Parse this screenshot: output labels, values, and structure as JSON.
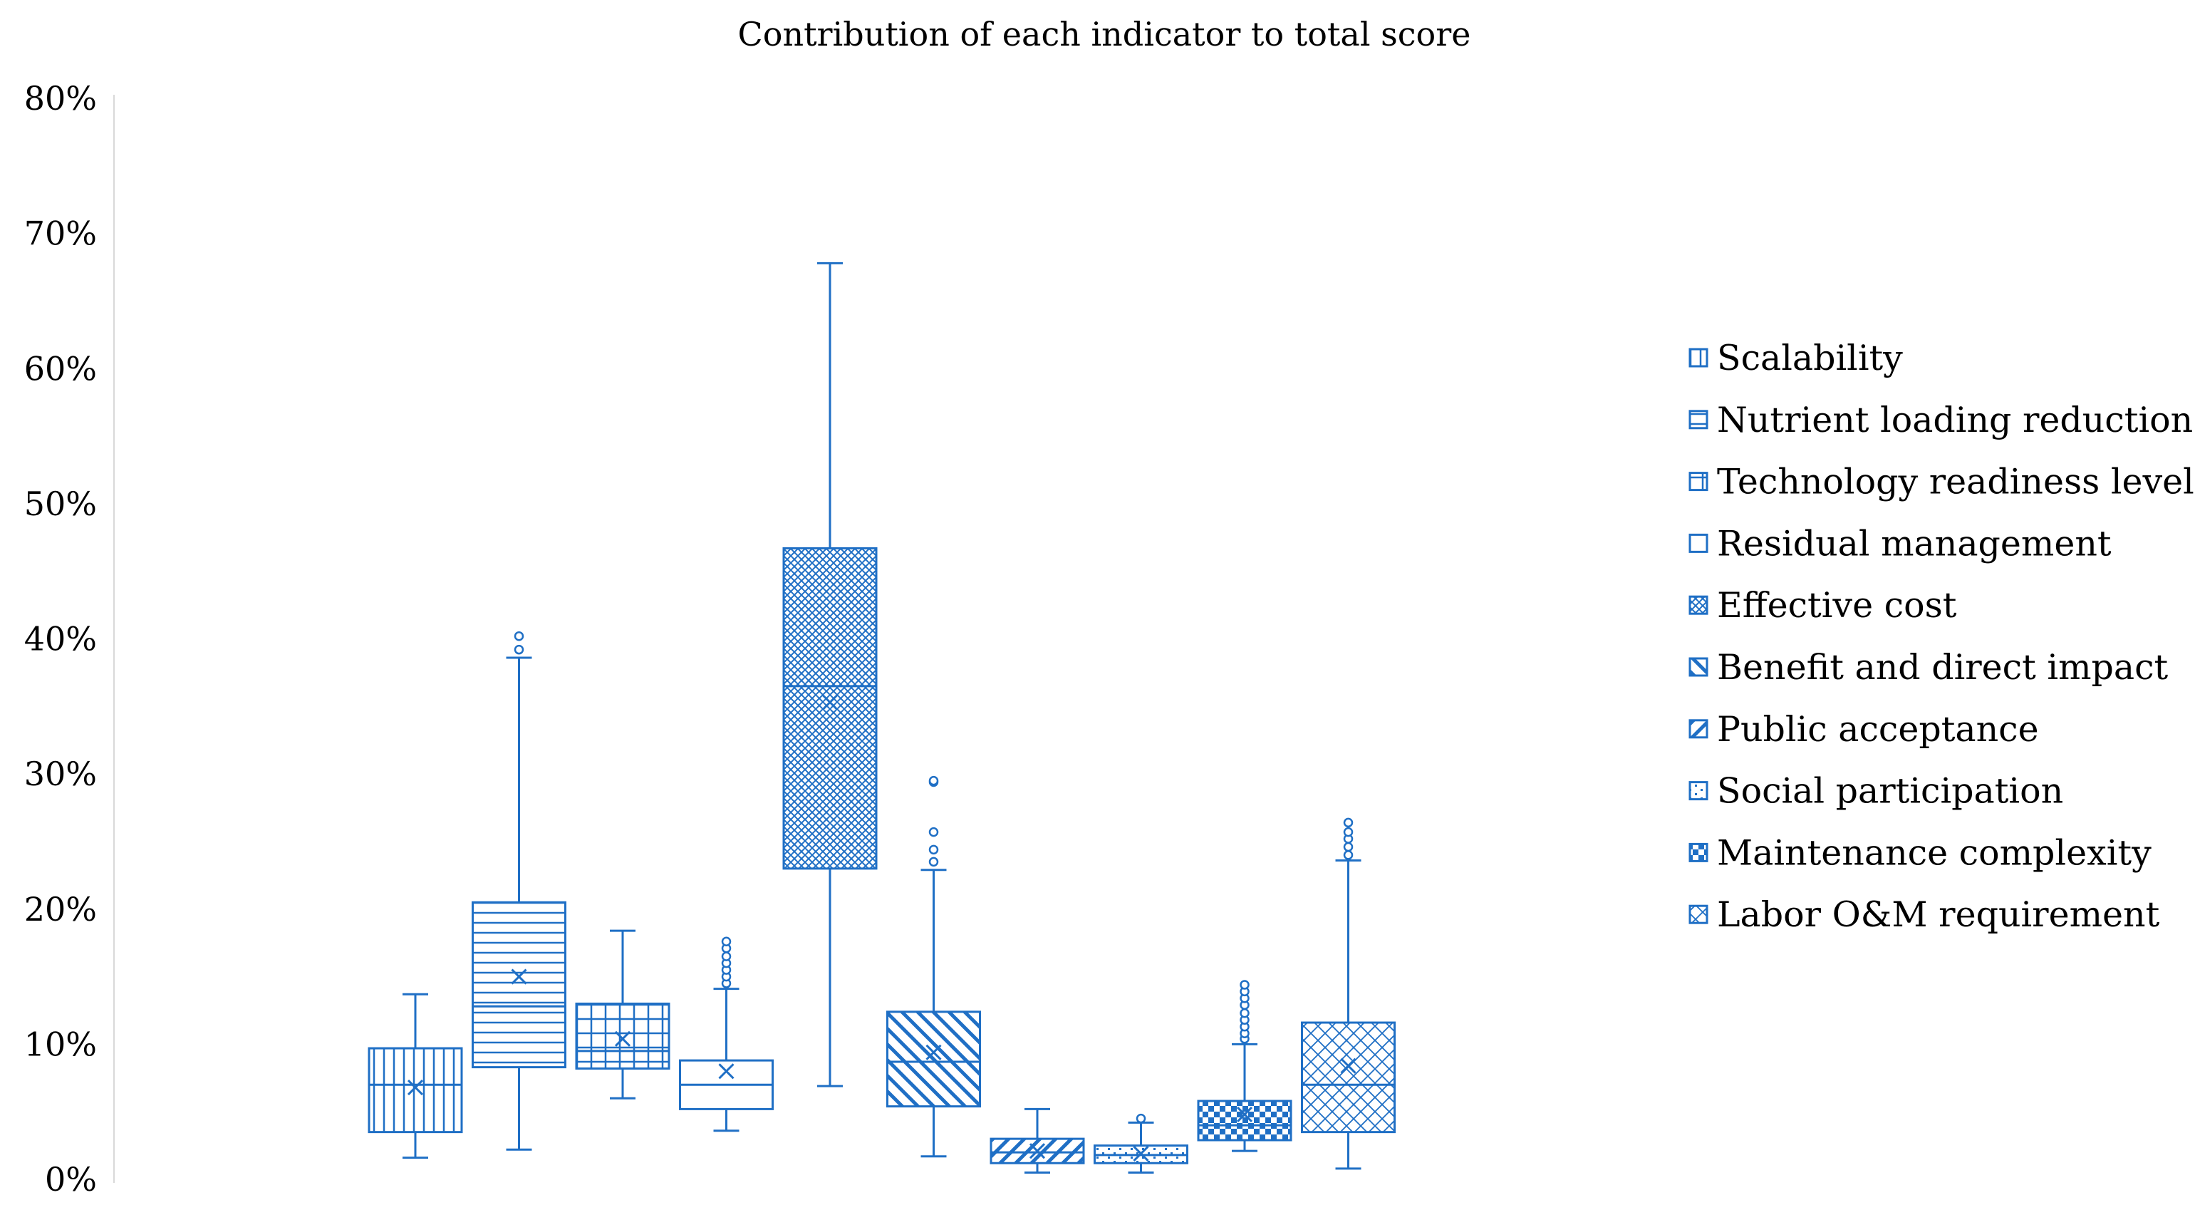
{
  "chart_data": {
    "type": "box",
    "title": "Contribution of each indicator to total score",
    "xlabel": "",
    "ylabel": "",
    "ylim": [
      0,
      80
    ],
    "y_unit": "%",
    "yticks": [
      0,
      10,
      20,
      30,
      40,
      50,
      60,
      70,
      80
    ],
    "ytick_labels": [
      "0%",
      "10%",
      "20%",
      "30%",
      "40%",
      "50%",
      "60%",
      "70%",
      "80%"
    ],
    "grid": false,
    "legend_position": "right",
    "series_color": "#1F6FC5",
    "series": [
      {
        "name": "Scalability",
        "pattern": "vlines",
        "whisker_low": 1.6,
        "q1": 3.5,
        "median": 7.0,
        "q3": 9.7,
        "whisker_high": 13.7,
        "mean": 6.8,
        "outliers": []
      },
      {
        "name": "Nutrient loading reduction",
        "pattern": "hlines",
        "whisker_low": 2.2,
        "q1": 8.3,
        "median": 12.8,
        "q3": 20.5,
        "whisker_high": 38.6,
        "mean": 15.0,
        "outliers": [
          39.2,
          40.2
        ]
      },
      {
        "name": "Technology readiness level",
        "pattern": "grid",
        "whisker_low": 6.0,
        "q1": 8.2,
        "median": 9.5,
        "q3": 13.0,
        "whisker_high": 18.4,
        "mean": 10.4,
        "outliers": []
      },
      {
        "name": "Residual management",
        "pattern": "none",
        "whisker_low": 3.6,
        "q1": 5.2,
        "median": 7.0,
        "q3": 8.8,
        "whisker_high": 14.1,
        "mean": 8.0,
        "outliers": [
          14.5,
          15.0,
          15.5,
          16.0,
          16.5,
          17.1,
          17.6
        ]
      },
      {
        "name": "Effective cost",
        "pattern": "crosshatch",
        "whisker_low": 6.9,
        "q1": 23.0,
        "median": 36.5,
        "q3": 46.7,
        "whisker_high": 67.8,
        "mean": 35.3,
        "outliers": []
      },
      {
        "name": "Benefit and direct impact",
        "pattern": "bdiag",
        "whisker_low": 1.7,
        "q1": 5.4,
        "median": 8.7,
        "q3": 12.4,
        "whisker_high": 22.9,
        "mean": 9.4,
        "outliers": [
          23.5,
          24.4,
          25.7,
          29.4,
          29.5
        ]
      },
      {
        "name": "Public acceptance",
        "pattern": "fdiag",
        "whisker_low": 0.5,
        "q1": 1.2,
        "median": 2.0,
        "q3": 3.0,
        "whisker_high": 5.2,
        "mean": 2.1,
        "outliers": []
      },
      {
        "name": "Social participation",
        "pattern": "dots",
        "whisker_low": 0.5,
        "q1": 1.2,
        "median": 1.8,
        "q3": 2.5,
        "whisker_high": 4.2,
        "mean": 1.9,
        "outliers": [
          4.5
        ]
      },
      {
        "name": "Maintenance complexity",
        "pattern": "checker",
        "whisker_low": 2.1,
        "q1": 2.9,
        "median": 4.0,
        "q3": 5.8,
        "whisker_high": 10.0,
        "mean": 4.8,
        "outliers": [
          10.4,
          10.8,
          11.3,
          11.8,
          12.3,
          12.9,
          13.4,
          13.9,
          14.4
        ]
      },
      {
        "name": "Labor O&M requirement",
        "pattern": "diamond",
        "whisker_low": 0.8,
        "q1": 3.5,
        "median": 7.0,
        "q3": 11.6,
        "whisker_high": 23.6,
        "mean": 8.4,
        "outliers": [
          24.0,
          24.6,
          25.2,
          25.7,
          26.4
        ]
      }
    ]
  }
}
